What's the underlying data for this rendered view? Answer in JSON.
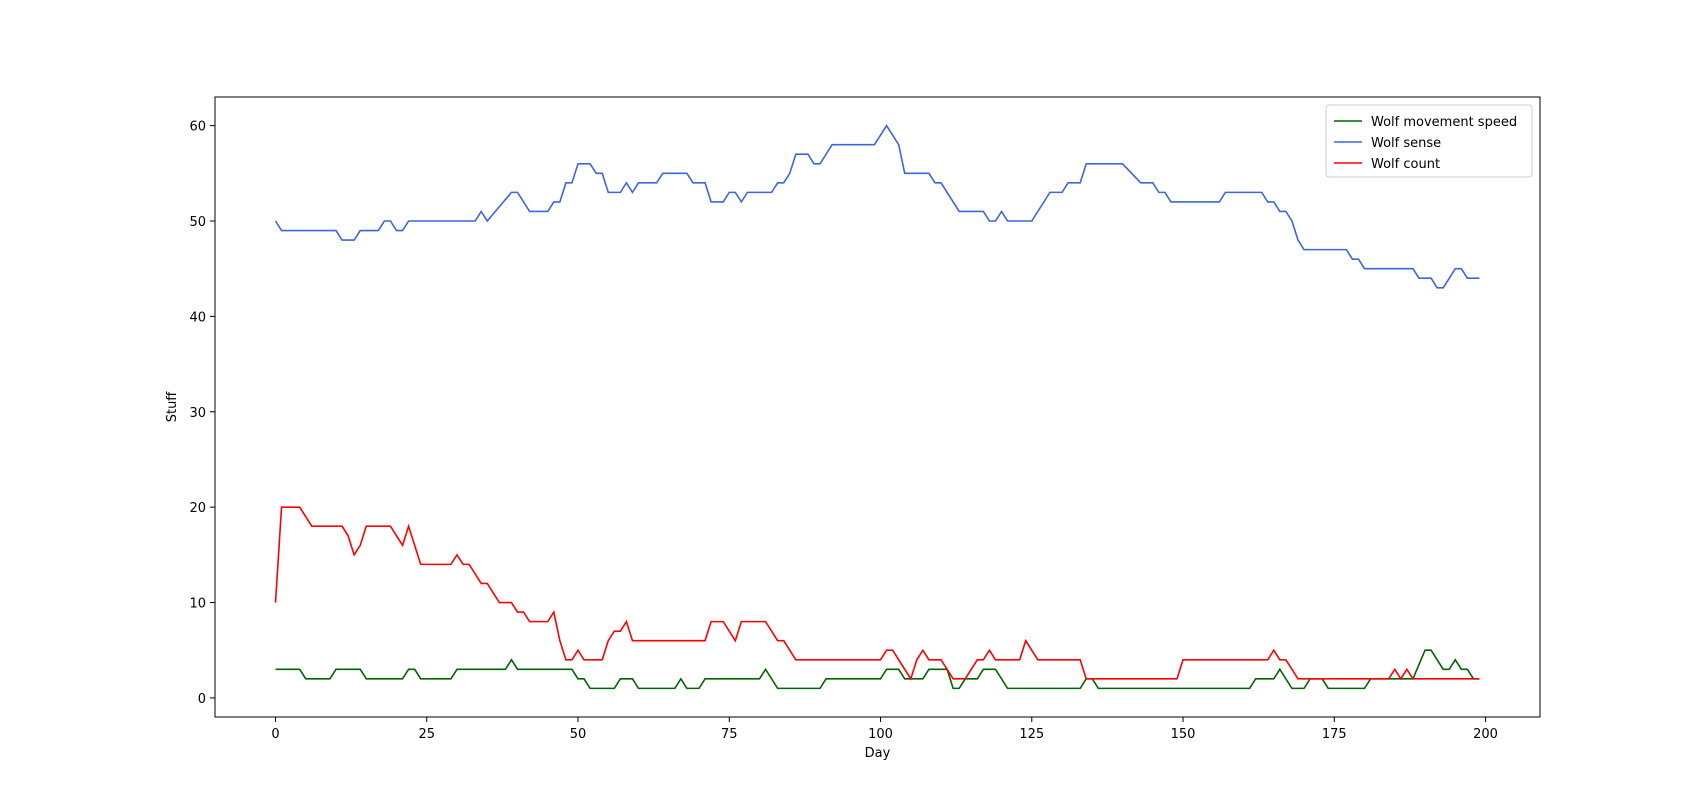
{
  "chart_data": {
    "type": "line",
    "title": "",
    "xlabel": "Day",
    "ylabel": "Stuff",
    "xlim": [
      -10,
      209
    ],
    "ylim": [
      -2,
      63
    ],
    "xticks": [
      0,
      25,
      50,
      75,
      100,
      125,
      150,
      175,
      200
    ],
    "yticks": [
      0,
      10,
      20,
      30,
      40,
      50,
      60
    ],
    "grid": false,
    "legend_position": "top-right",
    "series": [
      {
        "name": "Wolf movement speed",
        "color": "#006400",
        "points": [
          [
            0,
            3
          ],
          [
            4,
            3
          ],
          [
            5,
            2
          ],
          [
            9,
            2
          ],
          [
            10,
            3
          ],
          [
            14,
            3
          ],
          [
            15,
            2
          ],
          [
            21,
            2
          ],
          [
            22,
            3
          ],
          [
            23,
            3
          ],
          [
            24,
            2
          ],
          [
            29,
            2
          ],
          [
            30,
            3
          ],
          [
            38,
            3
          ],
          [
            39,
            4
          ],
          [
            40,
            3
          ],
          [
            49,
            3
          ],
          [
            50,
            2
          ],
          [
            51,
            2
          ],
          [
            52,
            1
          ],
          [
            56,
            1
          ],
          [
            57,
            2
          ],
          [
            59,
            2
          ],
          [
            60,
            1
          ],
          [
            66,
            1
          ],
          [
            67,
            2
          ],
          [
            68,
            1
          ],
          [
            70,
            1
          ],
          [
            71,
            2
          ],
          [
            80,
            2
          ],
          [
            81,
            3
          ],
          [
            83,
            1
          ],
          [
            90,
            1
          ],
          [
            91,
            2
          ],
          [
            100,
            2
          ],
          [
            101,
            3
          ],
          [
            103,
            3
          ],
          [
            104,
            2
          ],
          [
            107,
            2
          ],
          [
            108,
            3
          ],
          [
            111,
            3
          ],
          [
            112,
            1
          ],
          [
            113,
            1
          ],
          [
            114,
            2
          ],
          [
            116,
            2
          ],
          [
            117,
            3
          ],
          [
            119,
            3
          ],
          [
            121,
            1
          ],
          [
            133,
            1
          ],
          [
            134,
            2
          ],
          [
            135,
            2
          ],
          [
            136,
            1
          ],
          [
            161,
            1
          ],
          [
            162,
            2
          ],
          [
            165,
            2
          ],
          [
            166,
            3
          ],
          [
            168,
            1
          ],
          [
            170,
            1
          ],
          [
            171,
            2
          ],
          [
            173,
            2
          ],
          [
            174,
            1
          ],
          [
            180,
            1
          ],
          [
            181,
            2
          ],
          [
            188,
            2
          ],
          [
            190,
            5
          ],
          [
            191,
            5
          ],
          [
            193,
            3
          ],
          [
            194,
            3
          ],
          [
            195,
            4
          ],
          [
            196,
            3
          ],
          [
            197,
            3
          ],
          [
            198,
            2
          ],
          [
            199,
            2
          ]
        ]
      },
      {
        "name": "Wolf sense",
        "color": "#3e64e0",
        "points": [
          [
            0,
            50
          ],
          [
            1,
            49
          ],
          [
            10,
            49
          ],
          [
            11,
            48
          ],
          [
            13,
            48
          ],
          [
            14,
            49
          ],
          [
            17,
            49
          ],
          [
            18,
            50
          ],
          [
            19,
            50
          ],
          [
            20,
            49
          ],
          [
            21,
            49
          ],
          [
            22,
            50
          ],
          [
            33,
            50
          ],
          [
            34,
            51
          ],
          [
            35,
            50
          ],
          [
            39,
            53
          ],
          [
            40,
            53
          ],
          [
            42,
            51
          ],
          [
            45,
            51
          ],
          [
            46,
            52
          ],
          [
            47,
            52
          ],
          [
            48,
            54
          ],
          [
            49,
            54
          ],
          [
            50,
            56
          ],
          [
            52,
            56
          ],
          [
            53,
            55
          ],
          [
            54,
            55
          ],
          [
            55,
            53
          ],
          [
            57,
            53
          ],
          [
            58,
            54
          ],
          [
            59,
            53
          ],
          [
            60,
            54
          ],
          [
            63,
            54
          ],
          [
            64,
            55
          ],
          [
            68,
            55
          ],
          [
            69,
            54
          ],
          [
            71,
            54
          ],
          [
            72,
            52
          ],
          [
            74,
            52
          ],
          [
            75,
            53
          ],
          [
            76,
            53
          ],
          [
            77,
            52
          ],
          [
            78,
            53
          ],
          [
            82,
            53
          ],
          [
            83,
            54
          ],
          [
            84,
            54
          ],
          [
            85,
            55
          ],
          [
            86,
            57
          ],
          [
            88,
            57
          ],
          [
            89,
            56
          ],
          [
            90,
            56
          ],
          [
            92,
            58
          ],
          [
            99,
            58
          ],
          [
            101,
            60
          ],
          [
            103,
            58
          ],
          [
            104,
            55
          ],
          [
            108,
            55
          ],
          [
            109,
            54
          ],
          [
            110,
            54
          ],
          [
            113,
            51
          ],
          [
            117,
            51
          ],
          [
            118,
            50
          ],
          [
            119,
            50
          ],
          [
            120,
            51
          ],
          [
            121,
            50
          ],
          [
            125,
            50
          ],
          [
            128,
            53
          ],
          [
            130,
            53
          ],
          [
            131,
            54
          ],
          [
            133,
            54
          ],
          [
            134,
            56
          ],
          [
            140,
            56
          ],
          [
            143,
            54
          ],
          [
            145,
            54
          ],
          [
            146,
            53
          ],
          [
            147,
            53
          ],
          [
            148,
            52
          ],
          [
            156,
            52
          ],
          [
            157,
            53
          ],
          [
            163,
            53
          ],
          [
            164,
            52
          ],
          [
            165,
            52
          ],
          [
            166,
            51
          ],
          [
            167,
            51
          ],
          [
            168,
            50
          ],
          [
            169,
            48
          ],
          [
            170,
            47
          ],
          [
            177,
            47
          ],
          [
            178,
            46
          ],
          [
            179,
            46
          ],
          [
            180,
            45
          ],
          [
            188,
            45
          ],
          [
            189,
            44
          ],
          [
            191,
            44
          ],
          [
            192,
            43
          ],
          [
            193,
            43
          ],
          [
            195,
            45
          ],
          [
            196,
            45
          ],
          [
            197,
            44
          ],
          [
            199,
            44
          ]
        ]
      },
      {
        "name": "Wolf count",
        "color": "#ff0000",
        "points": [
          [
            0,
            10
          ],
          [
            1,
            20
          ],
          [
            4,
            20
          ],
          [
            6,
            18
          ],
          [
            11,
            18
          ],
          [
            12,
            17
          ],
          [
            13,
            15
          ],
          [
            14,
            16
          ],
          [
            15,
            18
          ],
          [
            19,
            18
          ],
          [
            21,
            16
          ],
          [
            22,
            18
          ],
          [
            24,
            14
          ],
          [
            29,
            14
          ],
          [
            30,
            15
          ],
          [
            31,
            14
          ],
          [
            32,
            14
          ],
          [
            34,
            12
          ],
          [
            35,
            12
          ],
          [
            37,
            10
          ],
          [
            39,
            10
          ],
          [
            40,
            9
          ],
          [
            41,
            9
          ],
          [
            42,
            8
          ],
          [
            45,
            8
          ],
          [
            46,
            9
          ],
          [
            47,
            6
          ],
          [
            48,
            4
          ],
          [
            49,
            4
          ],
          [
            50,
            5
          ],
          [
            51,
            4
          ],
          [
            54,
            4
          ],
          [
            55,
            6
          ],
          [
            56,
            7
          ],
          [
            57,
            7
          ],
          [
            58,
            8
          ],
          [
            59,
            6
          ],
          [
            71,
            6
          ],
          [
            72,
            8
          ],
          [
            74,
            8
          ],
          [
            76,
            6
          ],
          [
            77,
            8
          ],
          [
            81,
            8
          ],
          [
            83,
            6
          ],
          [
            84,
            6
          ],
          [
            86,
            4
          ],
          [
            100,
            4
          ],
          [
            101,
            5
          ],
          [
            102,
            5
          ],
          [
            105,
            2
          ],
          [
            106,
            4
          ],
          [
            107,
            5
          ],
          [
            108,
            4
          ],
          [
            110,
            4
          ],
          [
            112,
            2
          ],
          [
            114,
            2
          ],
          [
            116,
            4
          ],
          [
            117,
            4
          ],
          [
            118,
            5
          ],
          [
            119,
            4
          ],
          [
            123,
            4
          ],
          [
            124,
            6
          ],
          [
            126,
            4
          ],
          [
            133,
            4
          ],
          [
            134,
            2
          ],
          [
            149,
            2
          ],
          [
            150,
            4
          ],
          [
            164,
            4
          ],
          [
            165,
            5
          ],
          [
            166,
            4
          ],
          [
            167,
            4
          ],
          [
            169,
            2
          ],
          [
            184,
            2
          ],
          [
            185,
            3
          ],
          [
            186,
            2
          ],
          [
            187,
            3
          ],
          [
            188,
            2
          ],
          [
            199,
            2
          ]
        ]
      }
    ]
  }
}
